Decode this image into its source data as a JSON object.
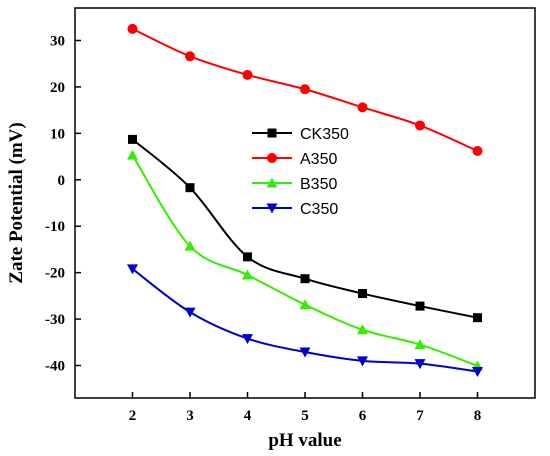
{
  "chart_data": {
    "type": "line",
    "xlabel": "pH value",
    "ylabel": "Zate Potential (mV)",
    "x": [
      2,
      3,
      4,
      5,
      6,
      7,
      8
    ],
    "xlim": [
      1,
      9
    ],
    "ylim": [
      -47,
      37
    ],
    "xticks": [
      2,
      3,
      4,
      5,
      6,
      7,
      8
    ],
    "yticks": [
      30,
      20,
      10,
      0,
      -10,
      -20,
      -30,
      -40
    ],
    "legend_position": "center",
    "grid": false,
    "series": [
      {
        "name": "CK350",
        "color": "#000000",
        "marker": "square",
        "values": [
          8.7,
          -1.7,
          -16.6,
          -21.3,
          -24.5,
          -27.2,
          -29.7
        ]
      },
      {
        "name": "A350",
        "color": "#ff0000",
        "marker": "circle",
        "values": [
          32.5,
          26.6,
          22.6,
          19.5,
          15.6,
          11.7,
          6.2
        ]
      },
      {
        "name": "B350",
        "color": "#33ee00",
        "marker": "triangle-up",
        "values": [
          5.3,
          -14.3,
          -20.5,
          -26.9,
          -32.3,
          -35.5,
          -40.1
        ]
      },
      {
        "name": "C350",
        "color": "#0000cc",
        "marker": "triangle-down",
        "values": [
          -19.2,
          -28.5,
          -34.2,
          -37.1,
          -39.0,
          -39.6,
          -41.3
        ]
      }
    ]
  }
}
